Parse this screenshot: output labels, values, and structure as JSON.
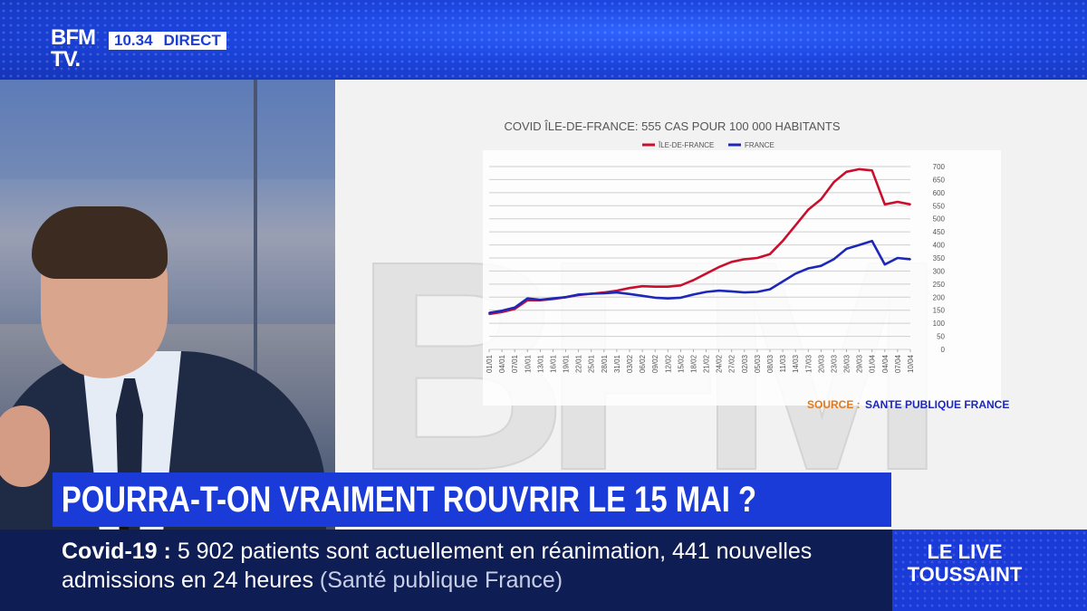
{
  "header": {
    "logo_line1": "BFM",
    "logo_line2": "TV.",
    "time": "10.34",
    "status": "DIRECT"
  },
  "headline": "POURRA-T-ON VRAIMENT ROUVRIR LE 15 MAI ?",
  "ticker": {
    "topic": "Covid-19",
    "sep": " : ",
    "text": "5 902 patients sont actuellement en réanimation, 441 nouvelles admissions en 24 heures",
    "source": "(Santé publique France)"
  },
  "live": {
    "line1": "LE LIVE",
    "line2": "TOUSSAINT"
  },
  "watermark_text": "BFM",
  "chart_data": {
    "type": "line",
    "title": "COVID ÎLE-DE-FRANCE: 555 CAS POUR 100 000 HABITANTS",
    "source_label": "SOURCE :",
    "source_name": "SANTE PUBLIQUE FRANCE",
    "ylim": [
      0,
      700
    ],
    "yticks": [
      0,
      50,
      100,
      150,
      200,
      250,
      300,
      350,
      400,
      450,
      500,
      550,
      600,
      650,
      700
    ],
    "grid": true,
    "legend_position": "top",
    "xticks": [
      "01/01",
      "04/01",
      "07/01",
      "10/01",
      "13/01",
      "16/01",
      "19/01",
      "22/01",
      "25/01",
      "28/01",
      "31/01",
      "03/02",
      "06/02",
      "09/02",
      "12/02",
      "15/02",
      "18/02",
      "21/02",
      "24/02",
      "27/02",
      "02/03",
      "05/03",
      "08/03",
      "11/03",
      "14/03",
      "17/03",
      "20/03",
      "23/03",
      "26/03",
      "29/03",
      "01/04",
      "04/04",
      "07/04",
      "10/04"
    ],
    "series": [
      {
        "name": "ÎLE-DE-FRANCE",
        "color": "#c8102e",
        "values": [
          135,
          143,
          155,
          188,
          188,
          193,
          200,
          208,
          213,
          218,
          225,
          235,
          242,
          240,
          240,
          245,
          265,
          290,
          315,
          335,
          345,
          350,
          365,
          415,
          475,
          535,
          575,
          640,
          680,
          690,
          685,
          555,
          565,
          555
        ]
      },
      {
        "name": "FRANCE",
        "color": "#1d27b8",
        "values": [
          140,
          148,
          160,
          195,
          190,
          195,
          200,
          210,
          213,
          215,
          218,
          212,
          205,
          198,
          195,
          198,
          210,
          220,
          225,
          222,
          218,
          220,
          230,
          260,
          290,
          310,
          320,
          345,
          385,
          400,
          415,
          325,
          350,
          345
        ]
      }
    ]
  }
}
